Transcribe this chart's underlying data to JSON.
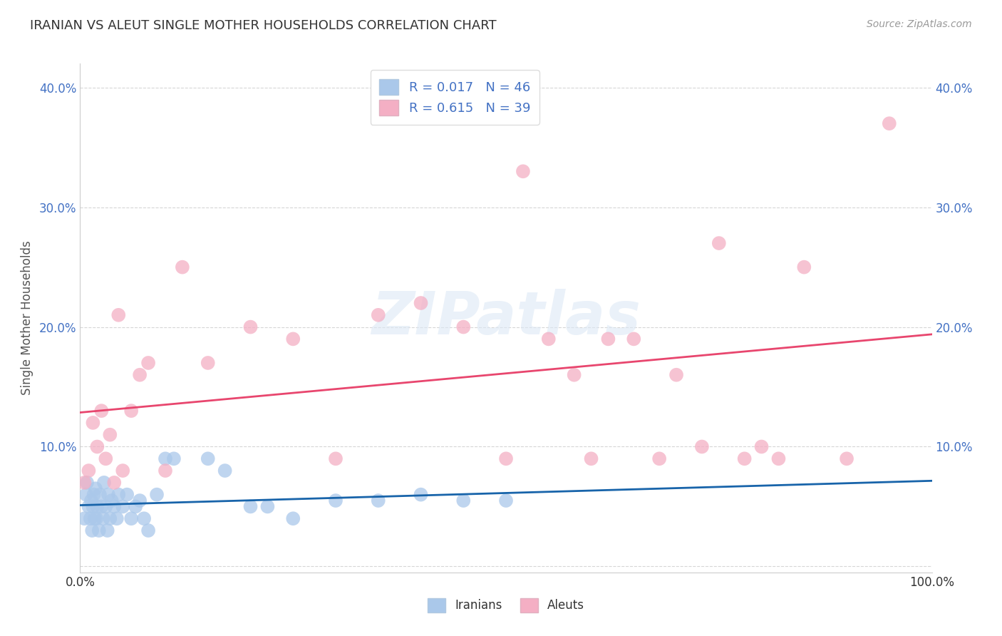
{
  "title": "IRANIAN VS ALEUT SINGLE MOTHER HOUSEHOLDS CORRELATION CHART",
  "source_text": "Source: ZipAtlas.com",
  "ylabel": "Single Mother Households",
  "xlim": [
    0,
    1.0
  ],
  "ylim": [
    -0.005,
    0.42
  ],
  "x_ticks": [
    0.0,
    0.25,
    0.5,
    0.75,
    1.0
  ],
  "x_tick_labels": [
    "0.0%",
    "",
    "",
    "",
    "100.0%"
  ],
  "y_ticks": [
    0.0,
    0.1,
    0.2,
    0.3,
    0.4
  ],
  "y_tick_labels": [
    "",
    "10.0%",
    "20.0%",
    "30.0%",
    "40.0%"
  ],
  "iranians_R": 0.017,
  "iranians_N": 46,
  "aleuts_R": 0.615,
  "aleuts_N": 39,
  "iranian_color": "#aac8ea",
  "aleut_color": "#f4afc4",
  "iranian_line_color": "#1864aa",
  "aleut_line_color": "#e8466e",
  "legend_label_iranians": "Iranians",
  "legend_label_aleuts": "Aleuts",
  "background_color": "#ffffff",
  "grid_color": "#cccccc",
  "iranians_x": [
    0.005,
    0.007,
    0.008,
    0.01,
    0.012,
    0.013,
    0.014,
    0.015,
    0.016,
    0.017,
    0.018,
    0.019,
    0.02,
    0.022,
    0.023,
    0.025,
    0.027,
    0.028,
    0.03,
    0.032,
    0.033,
    0.035,
    0.037,
    0.04,
    0.043,
    0.045,
    0.05,
    0.055,
    0.06,
    0.065,
    0.07,
    0.075,
    0.08,
    0.09,
    0.1,
    0.11,
    0.15,
    0.17,
    0.2,
    0.22,
    0.25,
    0.3,
    0.35,
    0.4,
    0.45,
    0.5
  ],
  "iranians_y": [
    0.04,
    0.06,
    0.07,
    0.05,
    0.04,
    0.055,
    0.03,
    0.05,
    0.06,
    0.04,
    0.065,
    0.04,
    0.05,
    0.03,
    0.06,
    0.05,
    0.04,
    0.07,
    0.05,
    0.03,
    0.06,
    0.04,
    0.055,
    0.05,
    0.04,
    0.06,
    0.05,
    0.06,
    0.04,
    0.05,
    0.055,
    0.04,
    0.03,
    0.06,
    0.09,
    0.09,
    0.09,
    0.08,
    0.05,
    0.05,
    0.04,
    0.055,
    0.055,
    0.06,
    0.055,
    0.055
  ],
  "aleuts_x": [
    0.005,
    0.01,
    0.015,
    0.02,
    0.025,
    0.03,
    0.035,
    0.04,
    0.045,
    0.05,
    0.06,
    0.07,
    0.08,
    0.1,
    0.12,
    0.15,
    0.2,
    0.25,
    0.3,
    0.35,
    0.4,
    0.45,
    0.5,
    0.52,
    0.55,
    0.58,
    0.6,
    0.62,
    0.65,
    0.68,
    0.7,
    0.73,
    0.75,
    0.78,
    0.8,
    0.82,
    0.85,
    0.9,
    0.95
  ],
  "aleuts_y": [
    0.07,
    0.08,
    0.12,
    0.1,
    0.13,
    0.09,
    0.11,
    0.07,
    0.21,
    0.08,
    0.13,
    0.16,
    0.17,
    0.08,
    0.25,
    0.17,
    0.2,
    0.19,
    0.09,
    0.21,
    0.22,
    0.2,
    0.09,
    0.33,
    0.19,
    0.16,
    0.09,
    0.19,
    0.19,
    0.09,
    0.16,
    0.1,
    0.27,
    0.09,
    0.1,
    0.09,
    0.25,
    0.09,
    0.37
  ]
}
